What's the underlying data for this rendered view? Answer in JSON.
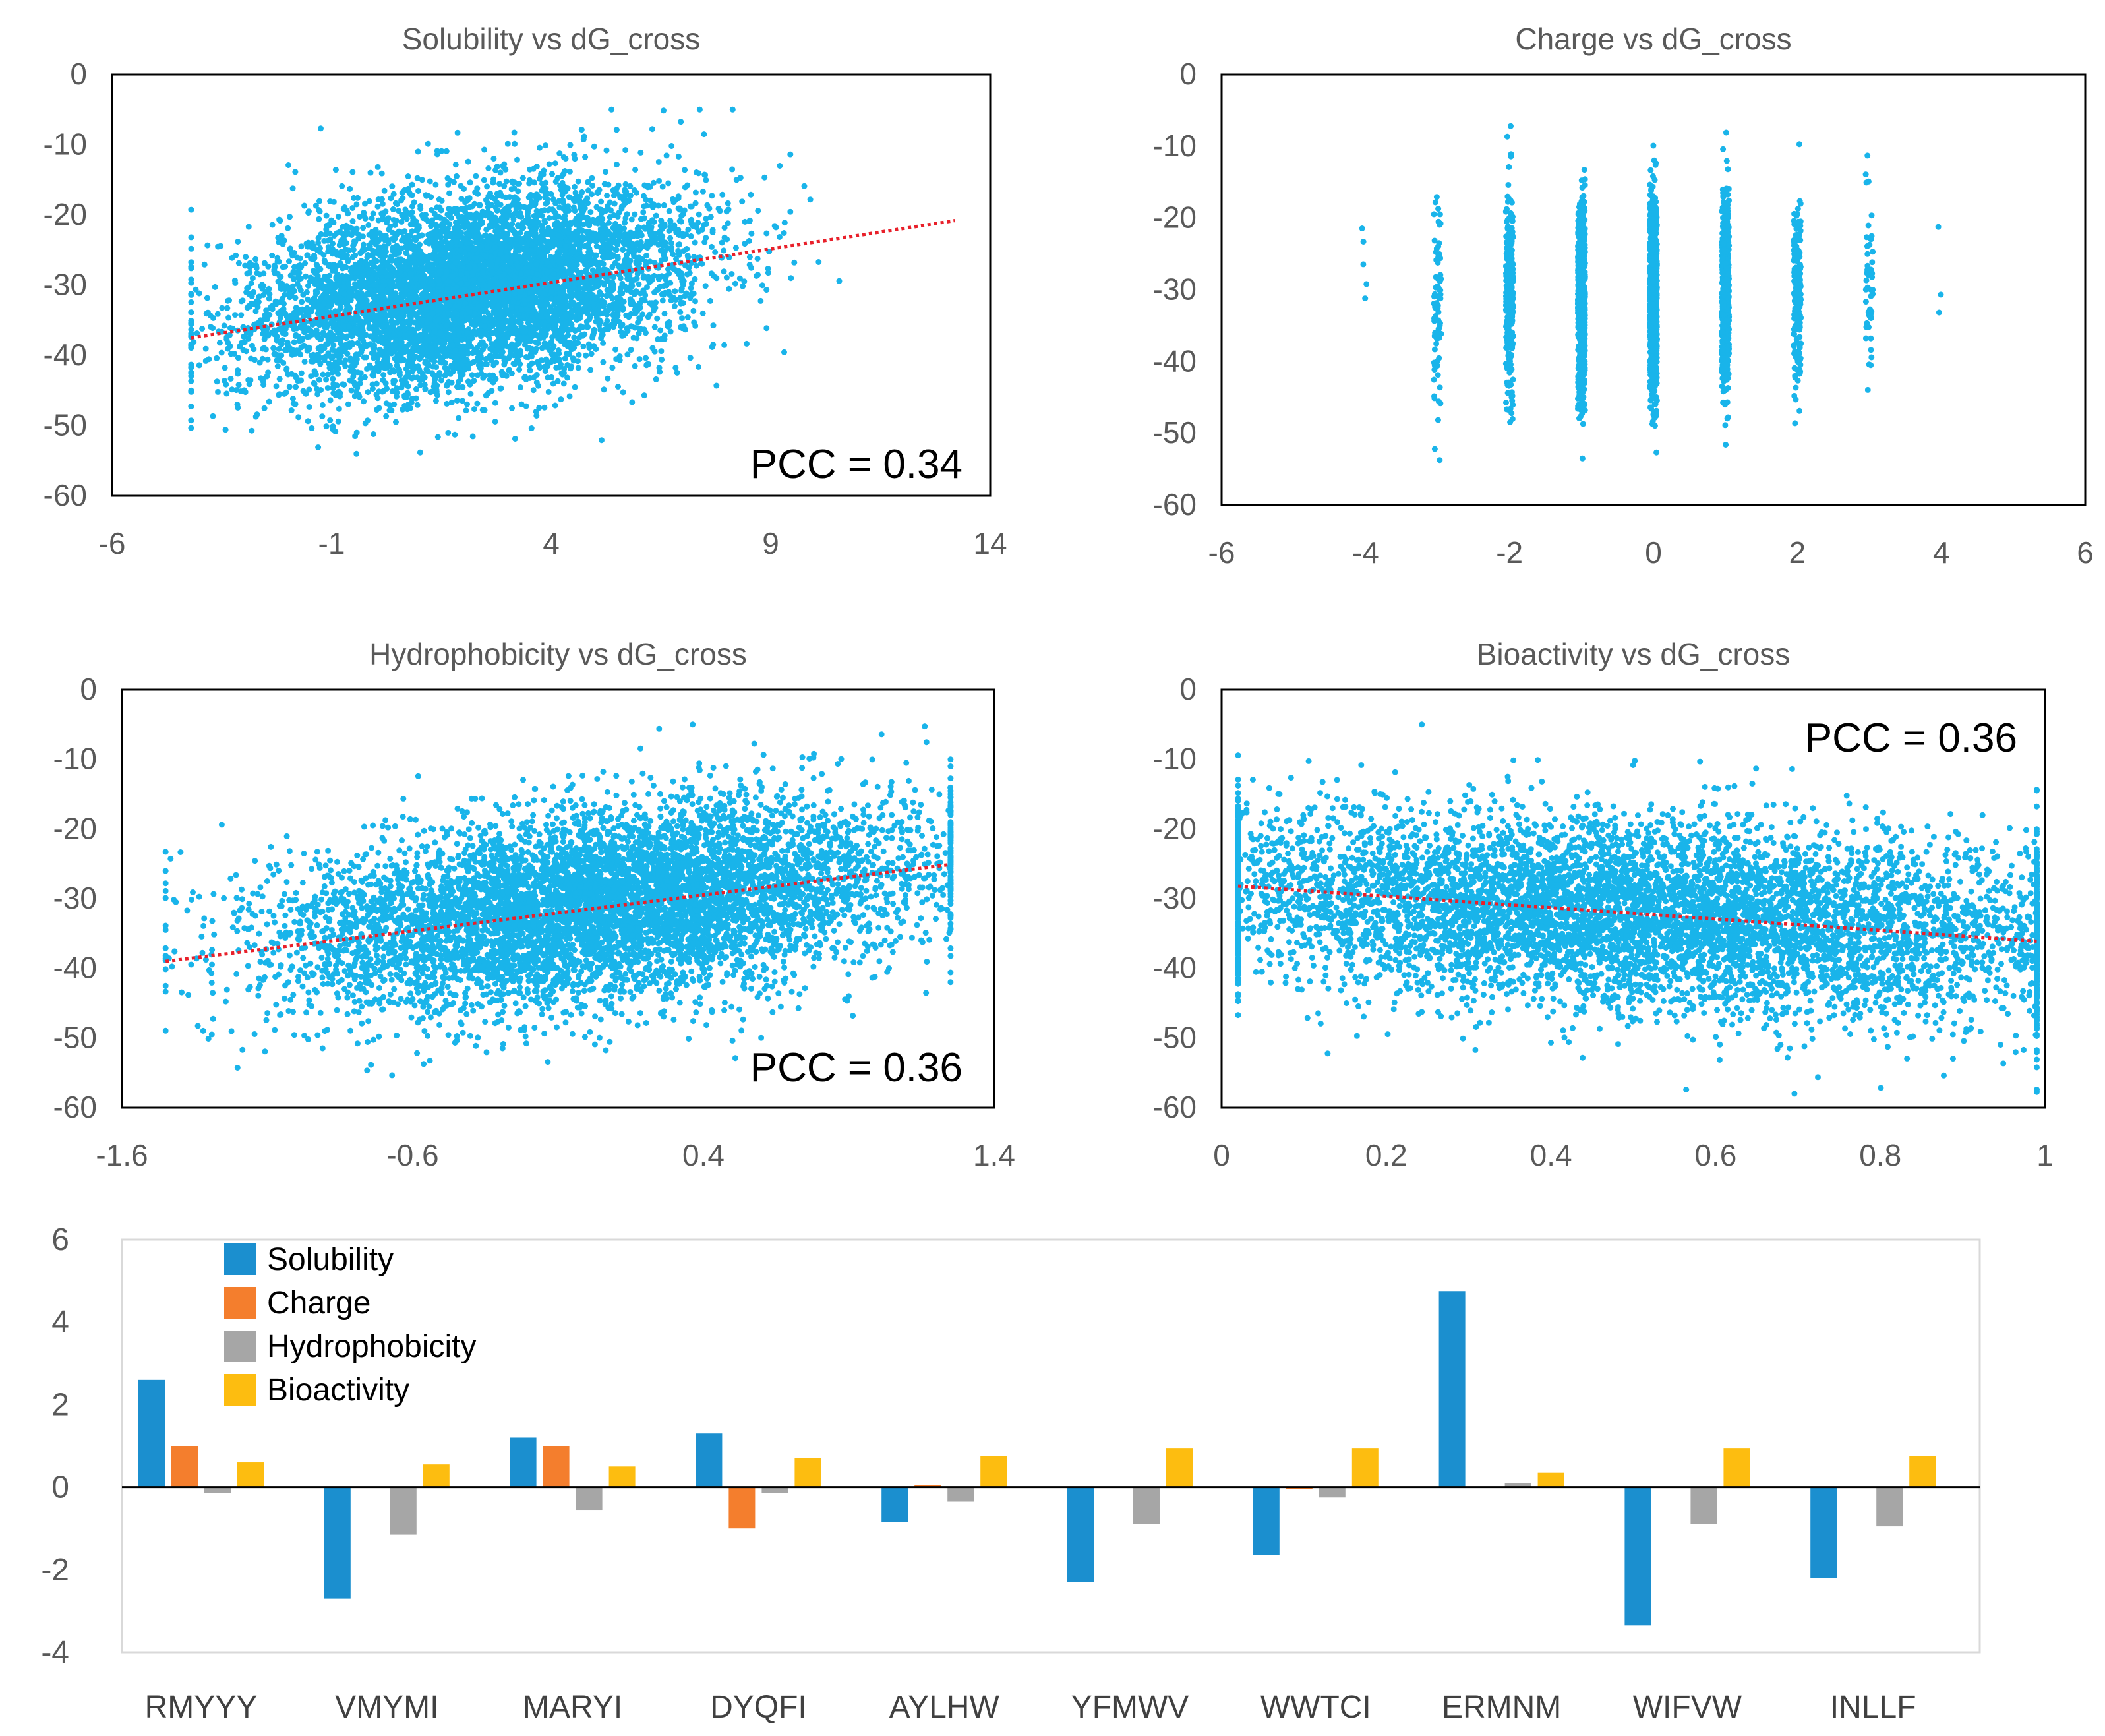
{
  "colors": {
    "points": "#19b4ea",
    "trend": "#e8202a",
    "axis": "#000000",
    "title": "#595959",
    "tick": "#595959",
    "solubility": "#1b8fcf",
    "charge": "#f47e2d",
    "hydrophobicity": "#a6a6a6",
    "bioactivity": "#fdbd10"
  },
  "chart_data": [
    {
      "id": "solubility",
      "type": "scatter",
      "title": "Solubility vs dG_cross",
      "xlabel": "",
      "ylabel": "",
      "xlim": [
        -6,
        14
      ],
      "ylim": [
        -60,
        0
      ],
      "xticks": [
        "-6",
        "-1",
        "4",
        "9",
        "14"
      ],
      "xtick_values": [
        -6,
        -1,
        4,
        9,
        14
      ],
      "yticks": [
        "0",
        "-10",
        "-20",
        "-30",
        "-40",
        "-50",
        "-60"
      ],
      "ytick_values": [
        0,
        -10,
        -20,
        -30,
        -40,
        -50,
        -60
      ],
      "annotation": "PCC = 0.34",
      "annotation_position": "bottom-right",
      "n_points": 6500,
      "point_model": {
        "x_mean": 2.2,
        "x_sd": 2.5,
        "x_min": -4.2,
        "x_max": 13.2,
        "y_intercept": -32.5,
        "y_slope": 0.95,
        "y_sd": 6.8
      },
      "trendline": {
        "x": [
          -4.2,
          13.2
        ],
        "y": [
          -37.5,
          -20.8
        ]
      }
    },
    {
      "id": "charge",
      "type": "scatter",
      "title": "Charge vs dG_cross",
      "xlabel": "",
      "ylabel": "",
      "xlim": [
        -6,
        6
      ],
      "ylim": [
        -60,
        0
      ],
      "xticks": [
        "-6",
        "-4",
        "-2",
        "0",
        "2",
        "4",
        "6"
      ],
      "xtick_values": [
        -6,
        -4,
        -2,
        0,
        2,
        4,
        6
      ],
      "yticks": [
        "0",
        "-10",
        "-20",
        "-30",
        "-40",
        "-50",
        "-60"
      ],
      "ytick_values": [
        0,
        -10,
        -20,
        -30,
        -40,
        -50,
        -60
      ],
      "categories": [
        -4,
        -3,
        -2,
        -1,
        0,
        1,
        2,
        3,
        4
      ],
      "points_per_category": [
        5,
        80,
        320,
        650,
        800,
        560,
        200,
        50,
        3
      ],
      "y_mean": -31,
      "y_sd": 6.8,
      "jitter": 0.05
    },
    {
      "id": "hydrophobicity",
      "type": "scatter",
      "title": "Hydrophobicity vs dG_cross",
      "xlabel": "",
      "ylabel": "",
      "xlim": [
        -1.6,
        1.4
      ],
      "ylim": [
        -60,
        0
      ],
      "xticks": [
        "-1.6",
        "-0.6",
        "0.4",
        "1.4"
      ],
      "xtick_values": [
        -1.6,
        -0.6,
        0.4,
        1.4
      ],
      "yticks": [
        "0",
        "-10",
        "-20",
        "-30",
        "-40",
        "-50",
        "-60"
      ],
      "ytick_values": [
        0,
        -10,
        -20,
        -30,
        -40,
        -50,
        -60
      ],
      "annotation": "PCC = 0.36",
      "annotation_position": "bottom-right",
      "n_points": 6500,
      "point_model": {
        "x_mean": 0.05,
        "x_sd": 0.55,
        "x_min": -1.45,
        "x_max": 1.25,
        "y_intercept": -31.2,
        "y_slope": 4.9,
        "y_sd": 6.8
      },
      "trendline": {
        "x": [
          -1.45,
          1.25
        ],
        "y": [
          -39.0,
          -25.1
        ]
      }
    },
    {
      "id": "bioactivity",
      "type": "scatter",
      "title": "Bioactivity vs dG_cross",
      "xlabel": "",
      "ylabel": "",
      "xlim": [
        0,
        1
      ],
      "ylim": [
        -60,
        0
      ],
      "xticks": [
        "0",
        "0.2",
        "0.4",
        "0.6",
        "0.8",
        "1"
      ],
      "xtick_values": [
        0,
        0.2,
        0.4,
        0.6,
        0.8,
        1
      ],
      "yticks": [
        "0",
        "-10",
        "-20",
        "-30",
        "-40",
        "-50",
        "-60"
      ],
      "ytick_values": [
        0,
        -10,
        -20,
        -30,
        -40,
        -50,
        -60
      ],
      "annotation": "PCC = 0.36",
      "annotation_position": "top-right",
      "n_points": 6500,
      "point_model": {
        "x_mean": 0.5,
        "x_sd": 0.29,
        "x_min": 0.02,
        "x_max": 0.99,
        "y_intercept": -28.0,
        "y_slope": -8.2,
        "y_sd": 6.8
      },
      "trendline": {
        "x": [
          0.02,
          0.99
        ],
        "y": [
          -28.2,
          -36.1
        ]
      }
    },
    {
      "id": "features",
      "type": "bar",
      "title": "",
      "xlabel": "",
      "ylabel": "",
      "ylim": [
        -4,
        6
      ],
      "yticks": [
        "6",
        "4",
        "2",
        "0",
        "-2",
        "-4"
      ],
      "ytick_values": [
        6,
        4,
        2,
        0,
        -2,
        -4
      ],
      "categories": [
        "RMYYY",
        "VMYMI",
        "MARYI",
        "DYQFI",
        "AYLHW",
        "YFMWV",
        "WWTCI",
        "ERMNM",
        "WIFVW",
        "INLLF"
      ],
      "series": [
        {
          "name": "Solubility",
          "values": [
            2.6,
            -2.7,
            1.2,
            1.3,
            -0.85,
            -2.3,
            -1.65,
            4.75,
            -3.35,
            -2.2
          ]
        },
        {
          "name": "Charge",
          "values": [
            1.0,
            0,
            1.0,
            -1.0,
            0.05,
            0,
            -0.05,
            0,
            0,
            0
          ]
        },
        {
          "name": "Hydrophobicity",
          "values": [
            -0.15,
            -1.15,
            -0.55,
            -0.15,
            -0.35,
            -0.9,
            -0.25,
            0.1,
            -0.9,
            -0.95
          ]
        },
        {
          "name": "Bioactivity",
          "values": [
            0.6,
            0.55,
            0.5,
            0.7,
            0.75,
            0.95,
            0.95,
            0.35,
            0.95,
            0.75
          ]
        }
      ],
      "legend_position": "top-left"
    }
  ]
}
